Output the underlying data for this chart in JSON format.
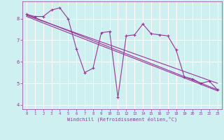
{
  "xlabel": "Windchill (Refroidissement éolien,°C)",
  "background_color": "#cef0f0",
  "grid_color": "#ffffff",
  "line_color": "#993399",
  "xlim": [
    -0.5,
    23.5
  ],
  "ylim": [
    3.8,
    8.8
  ],
  "xticks": [
    0,
    1,
    2,
    3,
    4,
    5,
    6,
    7,
    8,
    9,
    10,
    11,
    12,
    13,
    14,
    15,
    16,
    17,
    18,
    19,
    20,
    21,
    22,
    23
  ],
  "yticks": [
    4,
    5,
    6,
    7,
    8
  ],
  "series1_x": [
    0,
    1,
    2,
    3,
    4,
    5,
    6,
    7,
    8,
    9,
    10,
    11,
    12,
    13,
    14,
    15,
    16,
    17,
    18,
    19,
    20,
    21,
    22,
    23
  ],
  "series1_y": [
    8.2,
    8.1,
    8.1,
    8.4,
    8.5,
    8.0,
    6.6,
    5.5,
    5.7,
    7.35,
    7.4,
    4.35,
    7.2,
    7.25,
    7.75,
    7.3,
    7.25,
    7.2,
    6.55,
    5.3,
    5.2,
    5.0,
    5.1,
    4.7
  ],
  "series2_x": [
    0,
    23
  ],
  "series2_y": [
    8.2,
    4.7
  ],
  "series3_x": [
    0,
    23
  ],
  "series3_y": [
    8.15,
    5.0
  ],
  "series4_x": [
    0,
    23
  ],
  "series4_y": [
    8.1,
    4.65
  ]
}
